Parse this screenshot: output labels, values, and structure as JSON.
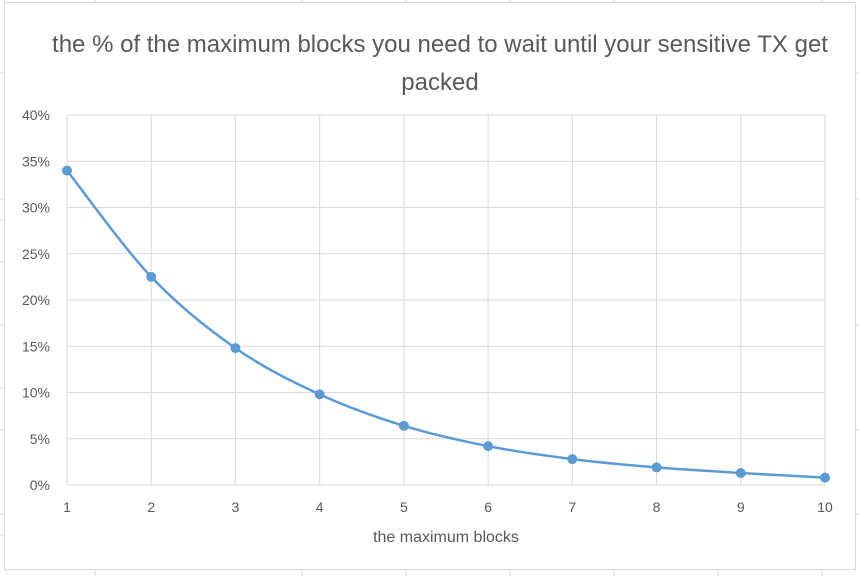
{
  "chart_data": {
    "type": "line",
    "title": "the % of the maximum blocks you need to wait until your sensitive TX get packed",
    "xlabel": "the maximum blocks",
    "ylabel": "",
    "x": [
      1,
      2,
      3,
      4,
      5,
      6,
      7,
      8,
      9,
      10
    ],
    "x_tick_labels": [
      "1",
      "2",
      "3",
      "4",
      "5",
      "6",
      "7",
      "8",
      "9",
      "10"
    ],
    "y_tick_labels": [
      "0%",
      "5%",
      "10%",
      "15%",
      "20%",
      "25%",
      "30%",
      "35%",
      "40%"
    ],
    "ylim": [
      0,
      0.4
    ],
    "y_tick_step": 0.05,
    "grid": true,
    "smooth": true,
    "series": [
      {
        "values": [
          0.34,
          0.225,
          0.148,
          0.098,
          0.064,
          0.042,
          0.028,
          0.019,
          0.013,
          0.008
        ],
        "color": "#5b9bd5"
      }
    ]
  }
}
